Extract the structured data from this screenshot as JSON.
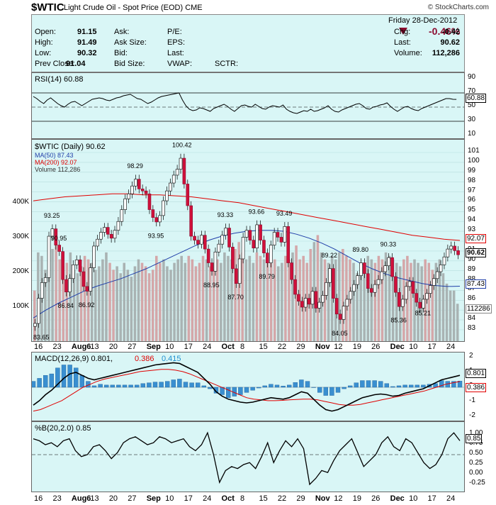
{
  "header": {
    "symbol": "$WTIC",
    "description": "Light Crude Oil - Spot Price (EOD)",
    "exchange": "CME",
    "brand": "© StockCharts.com"
  },
  "quote": {
    "date": "Friday   28-Dec-2012",
    "change_pct": "-0.46%",
    "rows": [
      {
        "l1": "Open:",
        "v1": "91.15",
        "l2": "Ask:",
        "l3": "P/E:",
        "l4": "Chg:",
        "v4": "-0.42"
      },
      {
        "l1": "High:",
        "v1": "91.49",
        "l2": "Ask Size:",
        "l3": "EPS:",
        "l4": "Last:",
        "v4": "90.62"
      },
      {
        "l1": "Low:",
        "v1": "90.32",
        "l2": "Bid:",
        "l3": "Last:",
        "l4": "Volume:",
        "v4": "112,286"
      },
      {
        "l1": "Prev Close:",
        "v1": "91.04",
        "l2": "Bid Size:",
        "l3": "VWAP:",
        "l3b": "SCTR:",
        "l4": "",
        "v4": ""
      }
    ],
    "colors": {
      "down": "#8b0a2e",
      "bg": "#d9f6f6"
    }
  },
  "rsi": {
    "label": "RSI(14) 60.88",
    "ticks": [
      "90",
      "70",
      "50",
      "30",
      "10"
    ],
    "value_label": "60.88"
  },
  "price": {
    "label": "$WTIC (Daily) 90.62",
    "ma50_label": "MA(50) 87.43",
    "ma200_label": "MA(200) 92.07",
    "vol_label": "Volume 112,286",
    "right_ticks": [
      "101",
      "100",
      "99",
      "98",
      "97",
      "96",
      "95",
      "94",
      "93",
      "92",
      "91",
      "90",
      "89",
      "88",
      "87",
      "86",
      "85",
      "84",
      "83"
    ],
    "vol_ticks": [
      "400K",
      "300K",
      "200K",
      "100K"
    ],
    "tag_ma200": "92.07",
    "tag_last": "90.62",
    "tag_ma50": "87.43",
    "tag_vol": "112286",
    "annotations": [
      "93.25",
      "90.95",
      "98.29",
      "93.95",
      "100.42",
      "88.95",
      "93.33",
      "87.70",
      "93.66",
      "89.79",
      "93.49",
      "89.22",
      "89.80",
      "90.33",
      "86.84",
      "86.92",
      "84.05",
      "85.36",
      "85.21",
      "83.65"
    ]
  },
  "macd": {
    "label": "MACD(12,26,9) 0.801,",
    "signal": "0.386",
    "hist": "0.415",
    "ticks": [
      "2",
      "1",
      "0",
      "-1",
      "-2"
    ],
    "tag_macd": "0.801",
    "tag_signal": "0.386"
  },
  "pctb": {
    "label": "%B(20,2.0) 0.85",
    "ticks": [
      "1.00",
      "0.75",
      "0.50",
      "0.25",
      "0.00",
      "-0.25"
    ],
    "tag": "0.85"
  },
  "x_axis": [
    "16",
    "23",
    "Aug6",
    "13",
    "20",
    "27",
    "Sep",
    "10",
    "17",
    "24",
    "Oct",
    "8",
    "15",
    "22",
    "29",
    "Nov",
    "12",
    "19",
    "26",
    "Dec",
    "10",
    "17",
    "24"
  ],
  "chart_data": {
    "type": "candlestick",
    "title": "$WTIC Light Crude Oil - Spot Price (EOD)",
    "ylim": [
      83,
      101
    ],
    "close": [
      83.65,
      86.2,
      87.8,
      88.3,
      92.5,
      93.25,
      91.6,
      90.95,
      88.1,
      86.84,
      88.2,
      89.6,
      90.1,
      88.9,
      87.4,
      86.92,
      89.3,
      91.5,
      92.2,
      92.9,
      93.4,
      92.7,
      92.3,
      93.1,
      94.0,
      95.2,
      96.3,
      96.8,
      97.6,
      98.29,
      97.3,
      97.1,
      96.8,
      95.2,
      94.4,
      93.95,
      94.6,
      96.1,
      97.1,
      97.9,
      98.7,
      99.3,
      100.42,
      97.8,
      95.6,
      92.5,
      92.1,
      91.7,
      92.6,
      91.2,
      89.8,
      88.95,
      90.9,
      91.7,
      92.6,
      93.33,
      91.4,
      89.2,
      87.7,
      90.2,
      92.4,
      93.1,
      92.1,
      91.3,
      93.66,
      92.1,
      90.8,
      89.79,
      91.6,
      92.9,
      92.4,
      91.9,
      93.49,
      89.8,
      88.1,
      86.6,
      85.9,
      85.3,
      86.2,
      85.6,
      86.9,
      85.2,
      85.8,
      86.5,
      87.8,
      89.22,
      86.2,
      84.6,
      84.05,
      85.4,
      86.1,
      86.9,
      87.6,
      88.5,
      89.8,
      88.7,
      87.2,
      86.8,
      87.6,
      88.1,
      88.9,
      89.5,
      90.33,
      88.4,
      86.8,
      85.36,
      86.1,
      87.4,
      87.9,
      86.7,
      85.8,
      85.21,
      86.1,
      86.7,
      87.5,
      88.2,
      88.9,
      89.6,
      90.4,
      91.2,
      91.5,
      91.04,
      90.62
    ],
    "ma50": [
      84.2,
      85.0,
      85.7,
      86.3,
      86.9,
      87.4,
      87.8,
      88.2,
      88.7,
      89.2,
      89.8,
      90.4,
      91.0,
      91.6,
      92.1,
      92.5,
      92.8,
      93.0,
      93.1,
      93.1,
      93.0,
      92.7,
      92.3,
      91.8,
      91.2,
      90.5,
      89.8,
      89.2,
      88.7,
      88.3,
      88.0,
      87.7,
      87.5,
      87.4,
      87.43
    ],
    "ma200": [
      96.1,
      96.3,
      96.5,
      96.6,
      96.7,
      96.8,
      96.8,
      96.7,
      96.7,
      96.6,
      96.5,
      96.3,
      96.1,
      95.9,
      95.6,
      95.3,
      95.0,
      94.7,
      94.4,
      94.1,
      93.8,
      93.5,
      93.2,
      92.9,
      92.6,
      92.4,
      92.2,
      92.07
    ],
    "volume_k": [
      150,
      260,
      250,
      210,
      230,
      270,
      300,
      240,
      220,
      230,
      260,
      210,
      200,
      220,
      250,
      240,
      230,
      210,
      220,
      240,
      260,
      230,
      210,
      220,
      200,
      230,
      210,
      190,
      220,
      240,
      230,
      220,
      200,
      210,
      250,
      230,
      240,
      220,
      210,
      230,
      240,
      250,
      230,
      250,
      240,
      220,
      230,
      250,
      240,
      220,
      210,
      240,
      230,
      260,
      250,
      240,
      270,
      290,
      260,
      240,
      250,
      230,
      260,
      250,
      240,
      230,
      250,
      240,
      220,
      230,
      250,
      240,
      260,
      280,
      240,
      250,
      230,
      270,
      290,
      310,
      260,
      240,
      230,
      250,
      240,
      260,
      270,
      250,
      240,
      230,
      200,
      210,
      230,
      250,
      240,
      230,
      250,
      240,
      260,
      250,
      240,
      230,
      220,
      240,
      250,
      230,
      240,
      230,
      220,
      240,
      230,
      210,
      230,
      240,
      200,
      170,
      150,
      150,
      112
    ],
    "rsi": [
      65,
      62,
      58,
      55,
      60,
      63,
      59,
      55,
      52,
      50,
      54,
      57,
      58,
      55,
      52,
      55,
      58,
      61,
      62,
      63,
      62,
      60,
      59,
      61,
      63,
      64,
      66,
      67,
      68,
      65,
      62,
      61,
      58,
      55,
      57,
      60,
      63,
      65,
      66,
      67,
      68,
      69,
      70,
      60,
      52,
      47,
      45,
      46,
      49,
      48,
      46,
      44,
      48,
      50,
      52,
      54,
      51,
      47,
      44,
      48,
      52,
      53,
      51,
      50,
      54,
      51,
      48,
      47,
      50,
      52,
      51,
      50,
      53,
      47,
      44,
      42,
      41,
      43,
      45,
      44,
      47,
      44,
      45,
      47,
      49,
      52,
      47,
      44,
      43,
      46,
      48,
      50,
      52,
      54,
      55,
      52,
      48,
      47,
      50,
      51,
      53,
      54,
      56,
      51,
      47,
      44,
      47,
      50,
      51,
      48,
      46,
      45,
      48,
      50,
      52,
      54,
      56,
      58,
      60,
      62,
      62,
      61,
      60.88
    ],
    "macd": [
      -1.2,
      -0.9,
      -0.5,
      -0.2,
      0.2,
      0.6,
      0.9,
      1.0,
      0.8,
      0.6,
      0.5,
      0.6,
      0.7,
      0.8,
      0.9,
      1.0,
      1.1,
      1.2,
      1.3,
      1.4,
      1.5,
      1.55,
      1.6,
      1.65,
      1.6,
      1.4,
      1.2,
      1.0,
      0.6,
      0.2,
      -0.3,
      -0.6,
      -0.8,
      -0.9,
      -1.0,
      -1.05,
      -1.0,
      -0.9,
      -0.8,
      -0.7,
      -0.75,
      -0.8,
      -0.7,
      -0.5,
      -0.3,
      -0.4,
      -0.8,
      -1.2,
      -1.5,
      -1.6,
      -1.5,
      -1.3,
      -1.1,
      -0.9,
      -0.7,
      -0.6,
      -0.5,
      -0.45,
      -0.5,
      -0.6,
      -0.55,
      -0.4,
      -0.3,
      -0.2,
      -0.1,
      0.1,
      0.3,
      0.5,
      0.6,
      0.7,
      0.801
    ],
    "signal": [
      -1.6,
      -1.5,
      -1.3,
      -1.1,
      -0.9,
      -0.6,
      -0.3,
      0.0,
      0.2,
      0.4,
      0.55,
      0.65,
      0.75,
      0.85,
      0.95,
      1.05,
      1.1,
      1.15,
      1.2,
      1.2,
      1.15,
      1.05,
      0.9,
      0.7,
      0.5,
      0.3,
      0.1,
      -0.1,
      -0.3,
      -0.5,
      -0.7,
      -0.8,
      -0.85,
      -0.9,
      -0.9,
      -0.88,
      -0.85,
      -0.82,
      -0.8,
      -0.8,
      -0.85,
      -0.95,
      -1.05,
      -1.15,
      -1.2,
      -1.2,
      -1.15,
      -1.05,
      -0.95,
      -0.85,
      -0.75,
      -0.65,
      -0.55,
      -0.45,
      -0.35,
      -0.25,
      -0.1,
      0.05,
      0.2,
      0.3,
      0.386
    ],
    "pctb": [
      0.9,
      0.85,
      0.75,
      0.8,
      0.7,
      0.85,
      0.9,
      0.6,
      0.45,
      0.5,
      0.7,
      0.75,
      0.6,
      0.4,
      0.55,
      0.8,
      0.9,
      0.95,
      0.85,
      0.75,
      0.8,
      0.95,
      0.9,
      0.8,
      0.85,
      0.9,
      0.7,
      0.6,
      0.75,
      1.05,
      0.5,
      -0.2,
      0.1,
      0.2,
      0.15,
      0.25,
      0.3,
      0.15,
      0.45,
      0.8,
      0.3,
      0.6,
      0.85,
      0.7,
      0.9,
      0.65,
      -0.25,
      -0.1,
      0.1,
      0.05,
      0.35,
      0.6,
      0.75,
      0.9,
      0.55,
      0.2,
      0.35,
      0.5,
      0.8,
      0.95,
      0.7,
      0.6,
      0.9,
      0.8,
      0.55,
      0.3,
      0.15,
      0.25,
      0.5,
      0.9,
      1.05,
      0.85
    ]
  }
}
